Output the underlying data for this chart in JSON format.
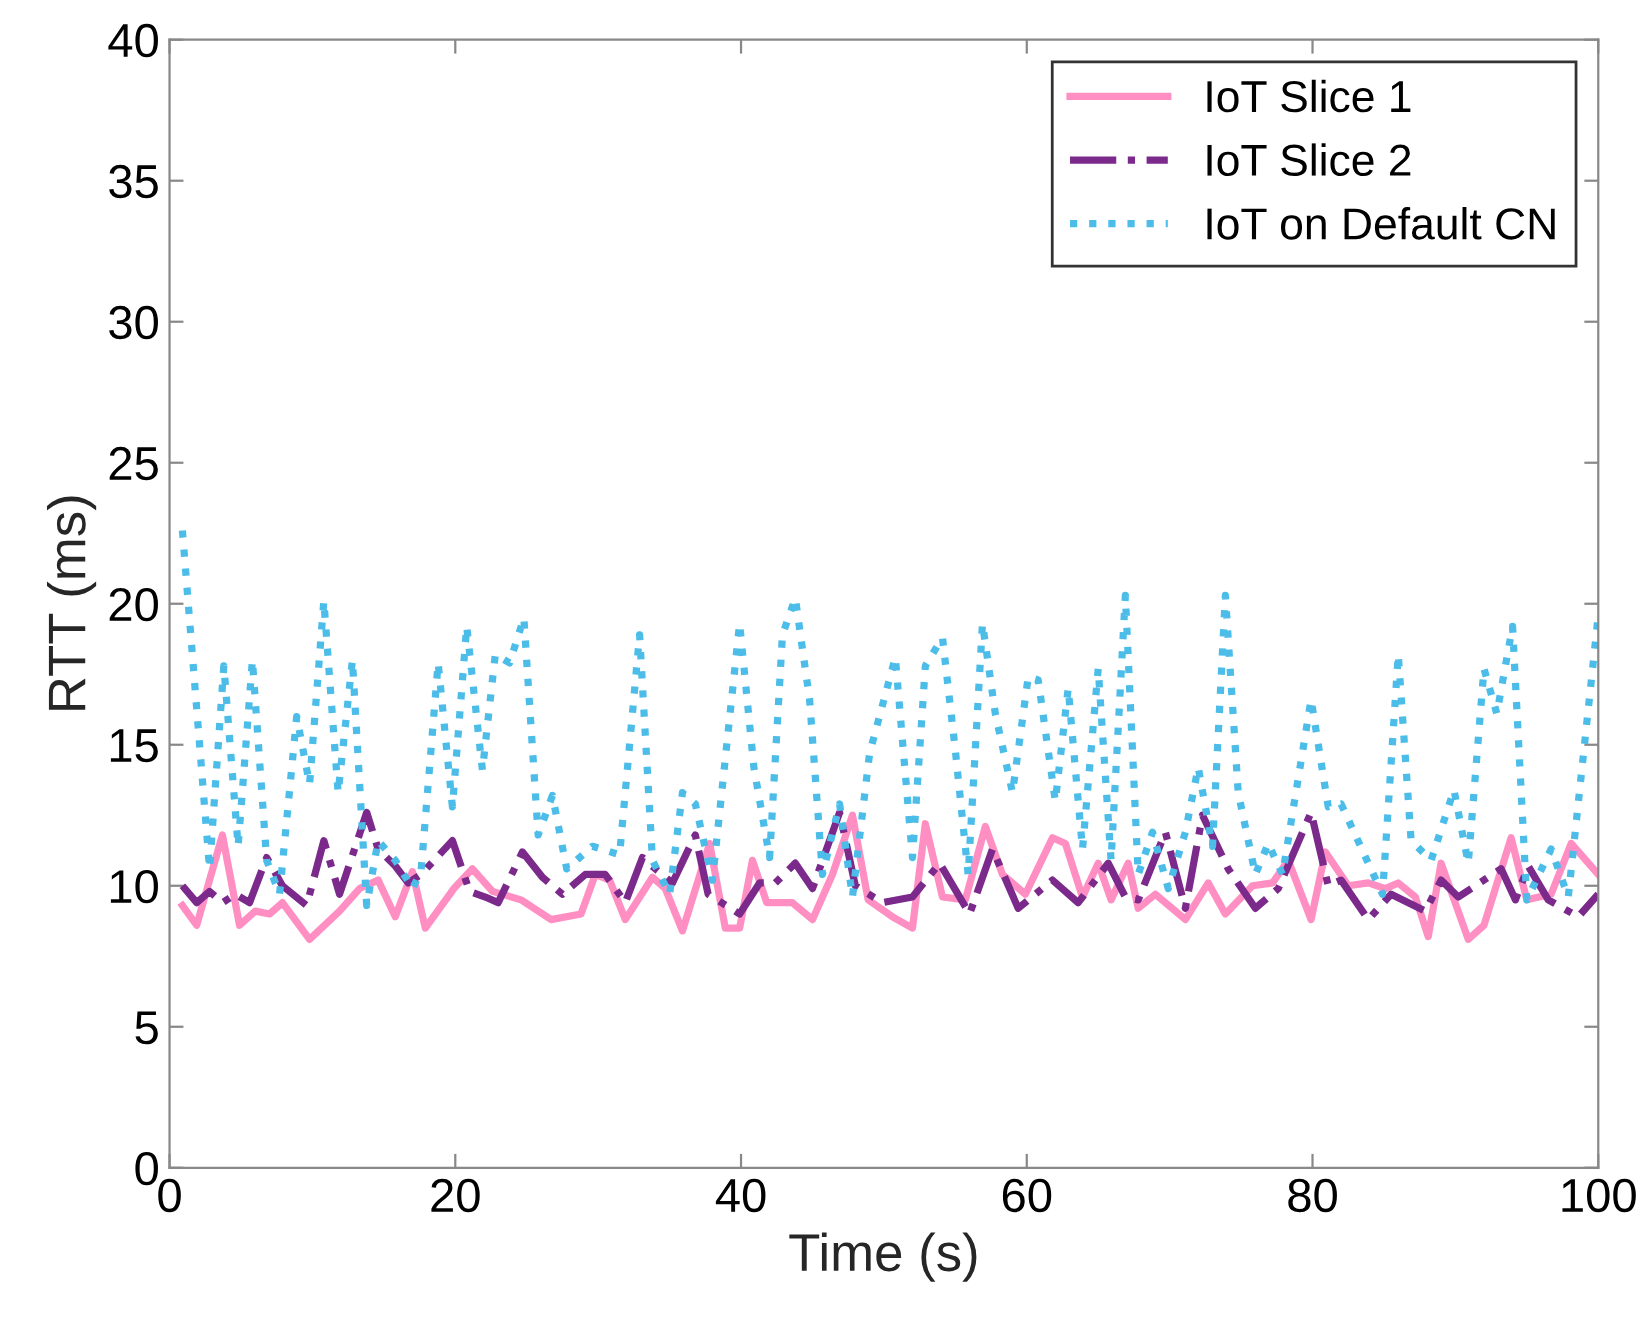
{
  "chart_data": {
    "type": "line",
    "xlabel": "Time (s)",
    "ylabel": "RTT (ms)",
    "xlim": [
      0,
      100
    ],
    "xticks": [
      0,
      20,
      40,
      60,
      80,
      100
    ],
    "ylim": [
      0,
      40
    ],
    "yticks": [
      0,
      5,
      10,
      15,
      20,
      25,
      30,
      35,
      40
    ],
    "grid": false,
    "legend": "top right",
    "marker": "none",
    "series": [
      {
        "name": "IoT Slice 1",
        "color": "#ff8fc3",
        "line_style": "solid",
        "x": [
          0.9,
          1.9,
          3.7,
          4.9,
          6,
          7,
          7.9,
          9.8,
          11.9,
          13.3,
          14.6,
          15.8,
          17,
          17.9,
          19.9,
          21.2,
          22.6,
          24.6,
          26.7,
          28.8,
          29.8,
          30.8,
          31.9,
          33.8,
          34.7,
          35.9,
          37.8,
          38.9,
          39.9,
          40.8,
          41.8,
          43.6,
          45,
          46.4,
          47.8,
          48.9,
          50.6,
          52,
          52.9,
          54.1,
          55.7,
          57.1,
          58.3,
          59.9,
          61.8,
          62.7,
          63.9,
          65,
          65.9,
          67.1,
          67.8,
          69,
          71.1,
          72.7,
          73.9,
          75.8,
          77.2,
          78.3,
          79.9,
          80.9,
          82.5,
          83.9,
          85.1,
          86,
          87.2,
          88.1,
          89,
          90.9,
          92,
          93.9,
          95,
          96.7,
          98.1,
          100
        ],
        "values": [
          9.3,
          8.6,
          11.8,
          8.6,
          9.1,
          9.0,
          9.4,
          8.1,
          9.1,
          9.9,
          10.2,
          8.9,
          10.5,
          8.5,
          9.9,
          10.6,
          9.8,
          9.5,
          8.8,
          9.0,
          10.4,
          10.2,
          8.8,
          10.3,
          9.9,
          8.4,
          11.5,
          8.5,
          8.5,
          10.9,
          9.4,
          9.4,
          8.8,
          10.4,
          12.5,
          9.5,
          8.9,
          8.5,
          12.2,
          9.6,
          9.5,
          12.1,
          10.4,
          9.7,
          11.7,
          11.5,
          9.6,
          10.8,
          9.5,
          10.8,
          9.2,
          9.7,
          8.8,
          10.1,
          9.0,
          10.0,
          10.1,
          10.9,
          8.8,
          11.2,
          10.0,
          10.1,
          9.9,
          10.1,
          9.6,
          8.2,
          10.8,
          8.1,
          8.6,
          11.7,
          9.5,
          9.7,
          11.5,
          10.4
        ]
      },
      {
        "name": "IoT Slice 2",
        "color": "#7b2a8c",
        "line_style": "dashed",
        "x": [
          0.9,
          1.9,
          2.8,
          3.7,
          4.6,
          5.6,
          6.8,
          7.9,
          9.6,
          10.8,
          11.9,
          13.8,
          14.6,
          15.8,
          16.7,
          17.6,
          19.8,
          21,
          22.1,
          23,
          24.7,
          26.1,
          27.5,
          29.1,
          30.5,
          31.9,
          33.1,
          34,
          35.2,
          36.8,
          37.7,
          39.9,
          41.3,
          42.4,
          43.8,
          45,
          46.9,
          48,
          49.9,
          52,
          53.9,
          56,
          57.6,
          59.4,
          61.8,
          63.6,
          65.7,
          66.9,
          67.8,
          69.7,
          71.1,
          72.3,
          74.1,
          76,
          77.6,
          79.9,
          81.1,
          82,
          83.9,
          85.5,
          87.9,
          89,
          90.2,
          93.2,
          94.2,
          95.1,
          96.5,
          98.6,
          100
        ],
        "values": [
          10.0,
          9.4,
          9.8,
          9.4,
          9.7,
          9.4,
          11.0,
          10.0,
          9.3,
          11.6,
          9.7,
          12.6,
          11.3,
          10.7,
          10.1,
          10.4,
          11.6,
          9.8,
          9.6,
          9.4,
          11.2,
          10.3,
          9.7,
          10.4,
          10.4,
          9.4,
          11.0,
          10.6,
          10.1,
          11.8,
          9.7,
          9.0,
          10.1,
          10.1,
          10.8,
          9.9,
          12.6,
          10.0,
          9.4,
          9.6,
          10.8,
          9.0,
          11.3,
          9.2,
          10.2,
          9.4,
          10.8,
          9.6,
          9.5,
          11.9,
          9.2,
          12.5,
          10.6,
          9.2,
          9.9,
          12.6,
          10.0,
          10.2,
          8.8,
          9.7,
          9.1,
          10.2,
          9.6,
          10.6,
          9.5,
          10.7,
          9.5,
          8.9,
          9.7
        ]
      },
      {
        "name": "IoT on Default CN",
        "color": "#4cbde9",
        "line_style": "dotted",
        "x": [
          0.9,
          2.8,
          3.8,
          4.8,
          5.8,
          6.8,
          7.7,
          8.9,
          9.8,
          10.8,
          11.8,
          12.8,
          13.8,
          14.6,
          15.8,
          17,
          17.6,
          18.8,
          19.8,
          20.8,
          21.9,
          22.8,
          23.8,
          24.8,
          25.8,
          26.8,
          27.8,
          29.6,
          31.5,
          32.9,
          33.8,
          35,
          35.9,
          36.8,
          38,
          39.9,
          40.9,
          42,
          42.9,
          43.8,
          44.8,
          45.7,
          46.9,
          47.8,
          49,
          50.8,
          52,
          52.9,
          54.1,
          55,
          55.9,
          56.9,
          57.8,
          59,
          60.1,
          60.8,
          62,
          62.9,
          63.9,
          65,
          65.9,
          66.9,
          67.8,
          68.8,
          69.9,
          71.1,
          72,
          73,
          73.9,
          74.8,
          76,
          76.9,
          77.9,
          79.9,
          81.1,
          82,
          84.9,
          86,
          86.9,
          88.3,
          89.9,
          90.9,
          92,
          92.9,
          94,
          95,
          96.7,
          97.9,
          100
        ],
        "values": [
          22.6,
          10.6,
          17.8,
          11.4,
          18.0,
          10.9,
          9.7,
          16.0,
          13.6,
          20.1,
          13.3,
          18.0,
          9.3,
          11.6,
          10.9,
          9.9,
          10.5,
          17.9,
          12.8,
          19.2,
          14.1,
          18.2,
          17.9,
          19.5,
          11.8,
          13.2,
          10.6,
          11.4,
          11.1,
          18.9,
          10.9,
          9.7,
          13.3,
          12.9,
          10.2,
          19.3,
          14.2,
          11.0,
          18.9,
          20.2,
          16.6,
          10.4,
          12.9,
          9.6,
          14.7,
          18.1,
          11.0,
          17.8,
          18.8,
          14.8,
          10.4,
          19.3,
          16.1,
          13.3,
          17.4,
          17.3,
          13.0,
          17.0,
          11.3,
          17.7,
          10.9,
          20.3,
          10.4,
          11.9,
          9.9,
          11.9,
          14.2,
          11.4,
          20.3,
          13.3,
          10.4,
          11.5,
          10.4,
          16.6,
          12.8,
          12.9,
          9.7,
          18.2,
          11.6,
          10.9,
          13.4,
          10.8,
          17.7,
          16.1,
          19.2,
          9.5,
          11.3,
          9.6,
          19.6
        ]
      }
    ]
  }
}
